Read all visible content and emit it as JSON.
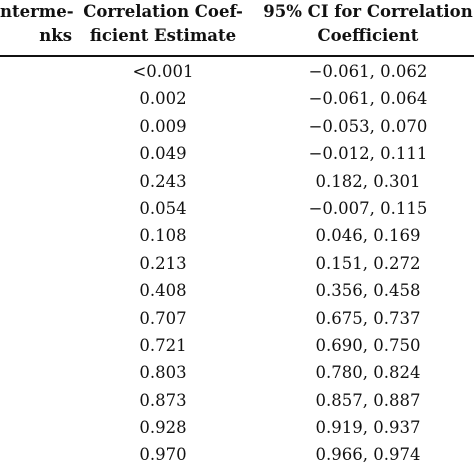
{
  "table": {
    "headers": {
      "col_left": {
        "line1": "nterme-",
        "line2": "nks"
      },
      "col_estimate": {
        "line1": "Correlation Coef-",
        "line2": "ficient Estimate"
      },
      "col_ci": {
        "line1": "95% CI for Correlation",
        "line2": "Coefficient"
      }
    },
    "rows": [
      {
        "estimate": "<0.001",
        "ci": "−0.061, 0.062"
      },
      {
        "estimate": "0.002",
        "ci": "−0.061, 0.064"
      },
      {
        "estimate": "0.009",
        "ci": "−0.053, 0.070"
      },
      {
        "estimate": "0.049",
        "ci": "−0.012, 0.111"
      },
      {
        "estimate": "0.243",
        "ci": "0.182, 0.301"
      },
      {
        "estimate": "0.054",
        "ci": "−0.007, 0.115"
      },
      {
        "estimate": "0.108",
        "ci": "0.046, 0.169"
      },
      {
        "estimate": "0.213",
        "ci": "0.151, 0.272"
      },
      {
        "estimate": "0.408",
        "ci": "0.356, 0.458"
      },
      {
        "estimate": "0.707",
        "ci": "0.675, 0.737"
      },
      {
        "estimate": "0.721",
        "ci": "0.690, 0.750"
      },
      {
        "estimate": "0.803",
        "ci": "0.780, 0.824"
      },
      {
        "estimate": "0.873",
        "ci": "0.857, 0.887"
      },
      {
        "estimate": "0.928",
        "ci": "0.919, 0.937"
      },
      {
        "estimate": "0.970",
        "ci": "0.966, 0.974"
      }
    ]
  }
}
